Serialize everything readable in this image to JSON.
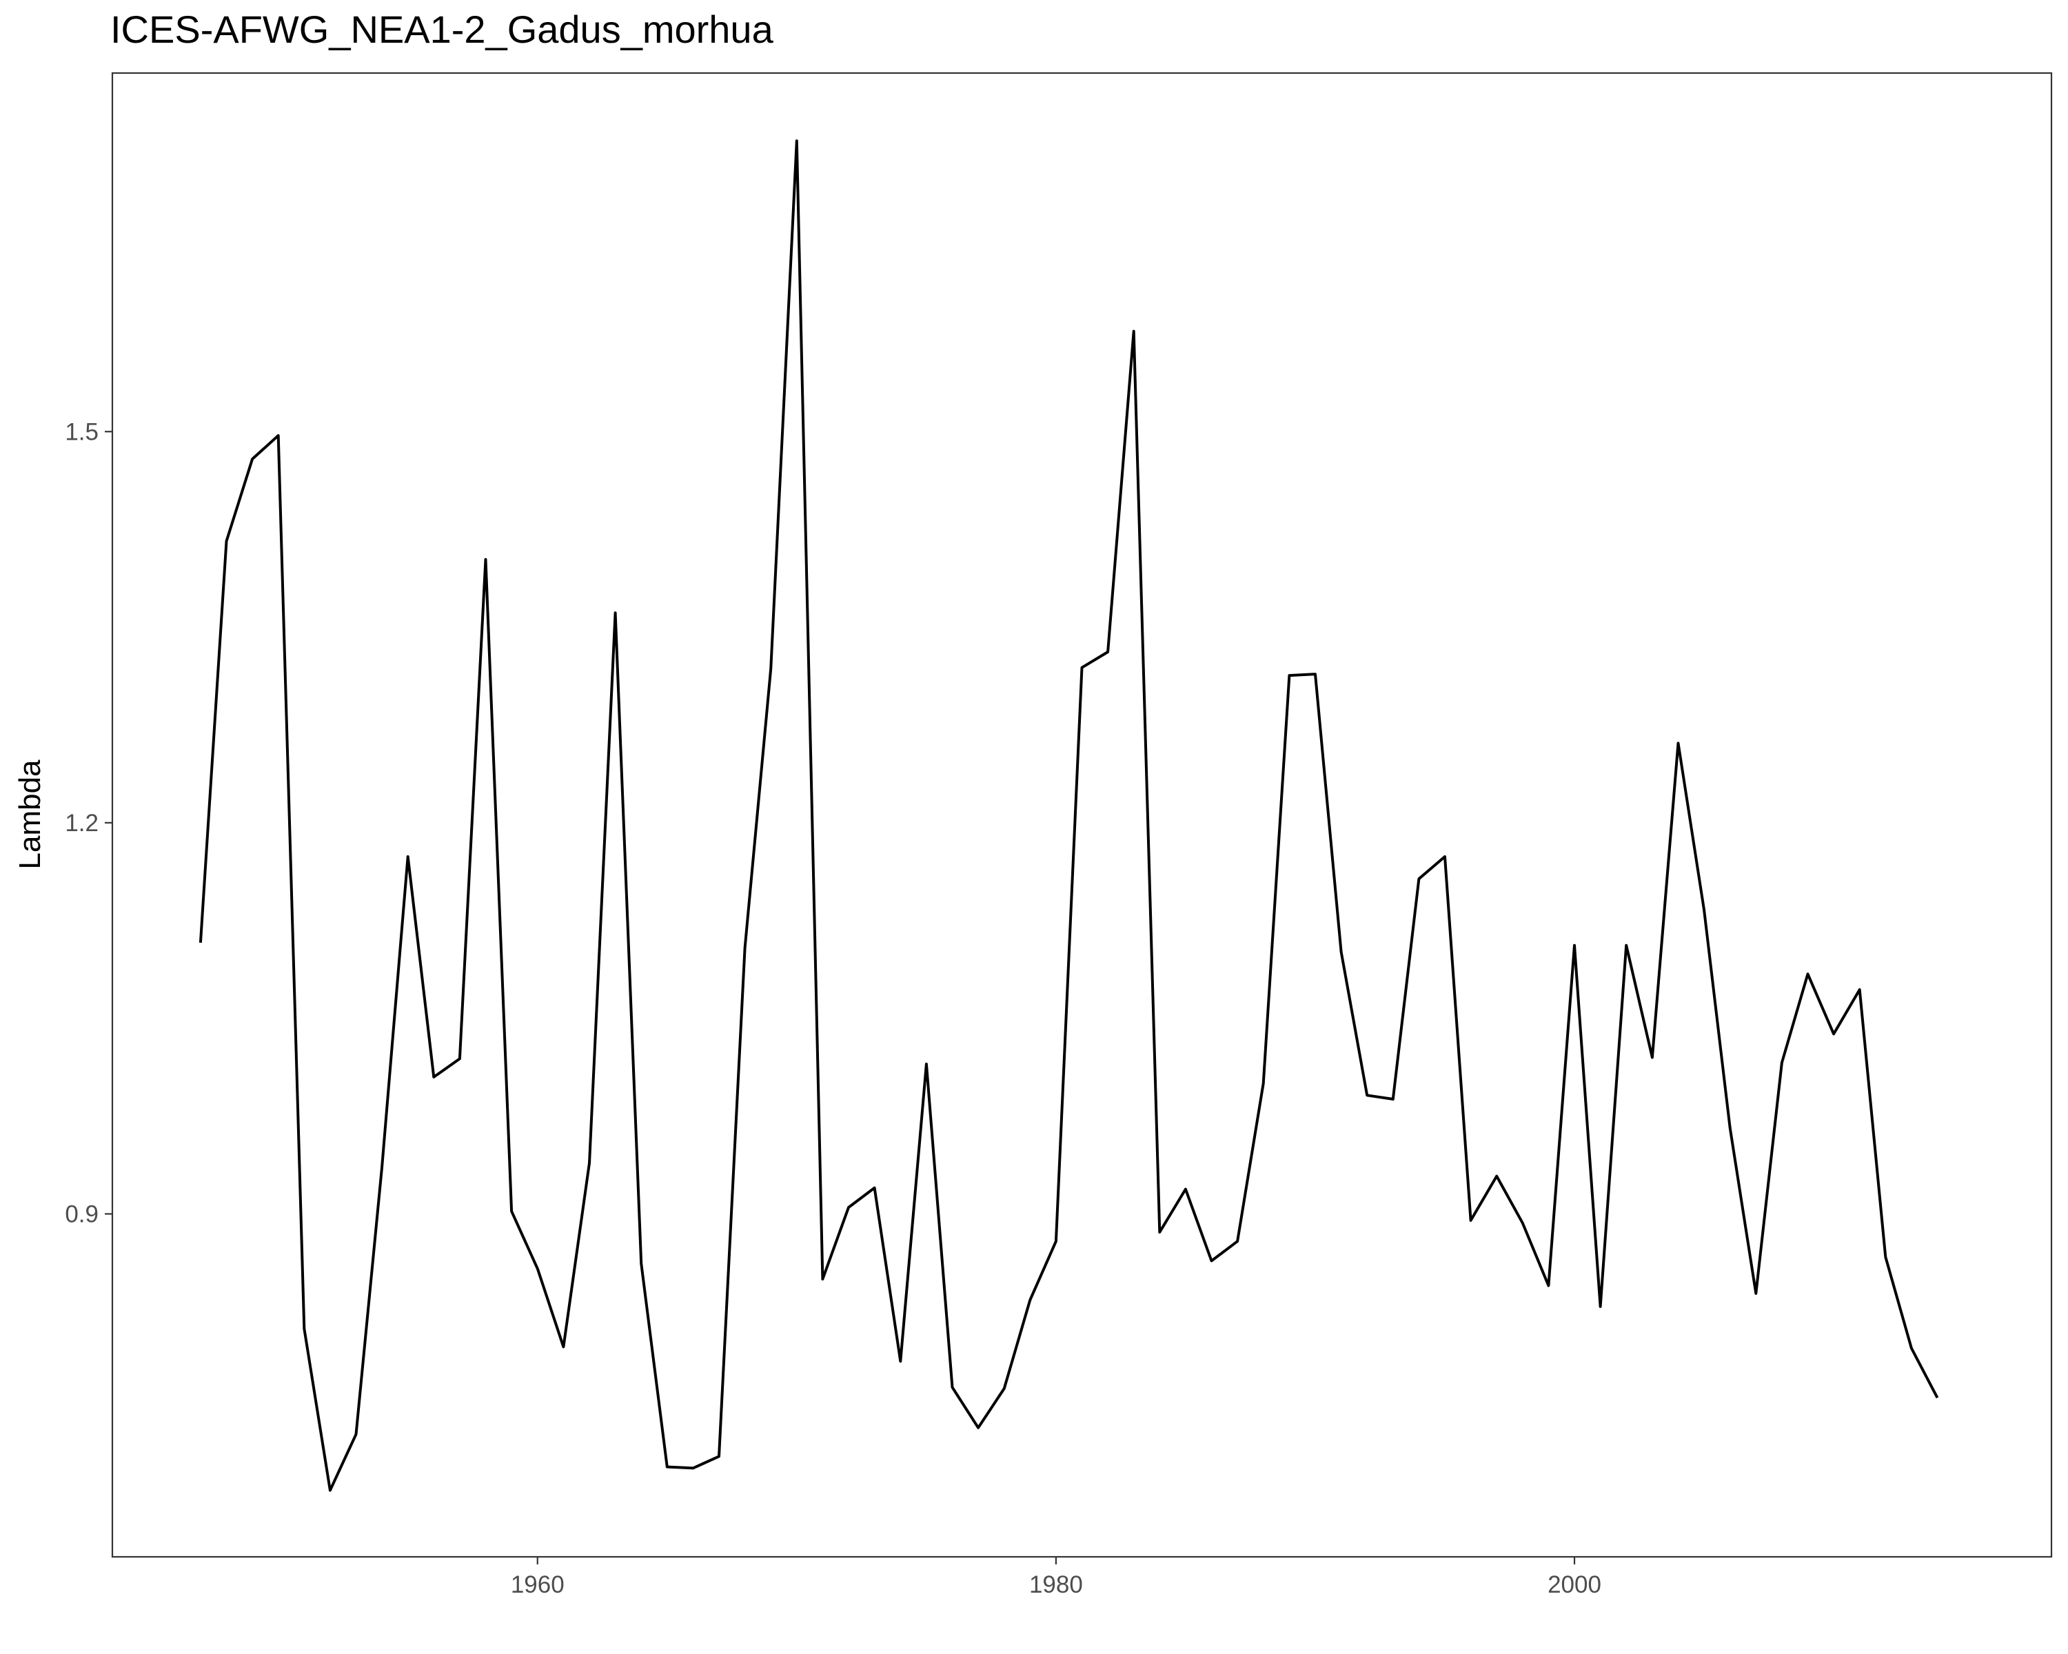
{
  "chart_data": {
    "type": "line",
    "title": "ICES-AFWG_NEA1-2_Gadus_morhua",
    "xlabel": "",
    "ylabel": "Lambda",
    "xlim": [
      1943.6,
      2018.4
    ],
    "ylim": [
      0.637,
      1.775
    ],
    "x_ticks": [
      1960,
      1980,
      2000
    ],
    "x_tick_labels": [
      "1960",
      "1980",
      "2000"
    ],
    "y_ticks": [
      0.9,
      1.2,
      1.5
    ],
    "y_tick_labels": [
      "0.9",
      "1.2",
      "1.5"
    ],
    "grid": false,
    "legend": "none",
    "line_color": "#000000",
    "series": [
      {
        "x": [
          1947,
          1948,
          1949,
          1950,
          1951,
          1952,
          1953,
          1954,
          1955,
          1956,
          1957,
          1958,
          1959,
          1960,
          1961,
          1962,
          1963,
          1964,
          1965,
          1966,
          1967,
          1968,
          1969,
          1970,
          1971,
          1972,
          1973,
          1974,
          1975,
          1976,
          1977,
          1978,
          1979,
          1980,
          1981,
          1982,
          1983,
          1984,
          1985,
          1986,
          1987,
          1988,
          1989,
          1990,
          1991,
          1992,
          1993,
          1994,
          1995,
          1996,
          1997,
          1998,
          1999,
          2000,
          2001,
          2002,
          2003,
          2004,
          2005,
          2006,
          2007,
          2008,
          2009,
          2010,
          2011,
          2012,
          2013,
          2014
        ],
        "values": [
          1.108,
          1.416,
          1.479,
          1.497,
          0.812,
          0.688,
          0.731,
          0.936,
          1.174,
          1.005,
          1.019,
          1.402,
          0.902,
          0.858,
          0.798,
          0.939,
          1.361,
          0.862,
          0.706,
          0.705,
          0.714,
          1.104,
          1.318,
          1.723,
          0.85,
          0.905,
          0.92,
          0.787,
          1.015,
          0.767,
          0.736,
          0.766,
          0.834,
          0.879,
          1.319,
          1.331,
          1.577,
          0.886,
          0.919,
          0.864,
          0.879,
          1.0,
          1.313,
          1.314,
          1.101,
          0.991,
          0.988,
          1.157,
          1.174,
          0.895,
          0.929,
          0.893,
          0.845,
          1.106,
          0.829,
          1.106,
          1.02,
          1.261,
          1.133,
          0.966,
          0.839,
          1.016,
          1.084,
          1.038,
          1.072,
          0.867,
          0.797,
          0.759
        ]
      }
    ]
  }
}
